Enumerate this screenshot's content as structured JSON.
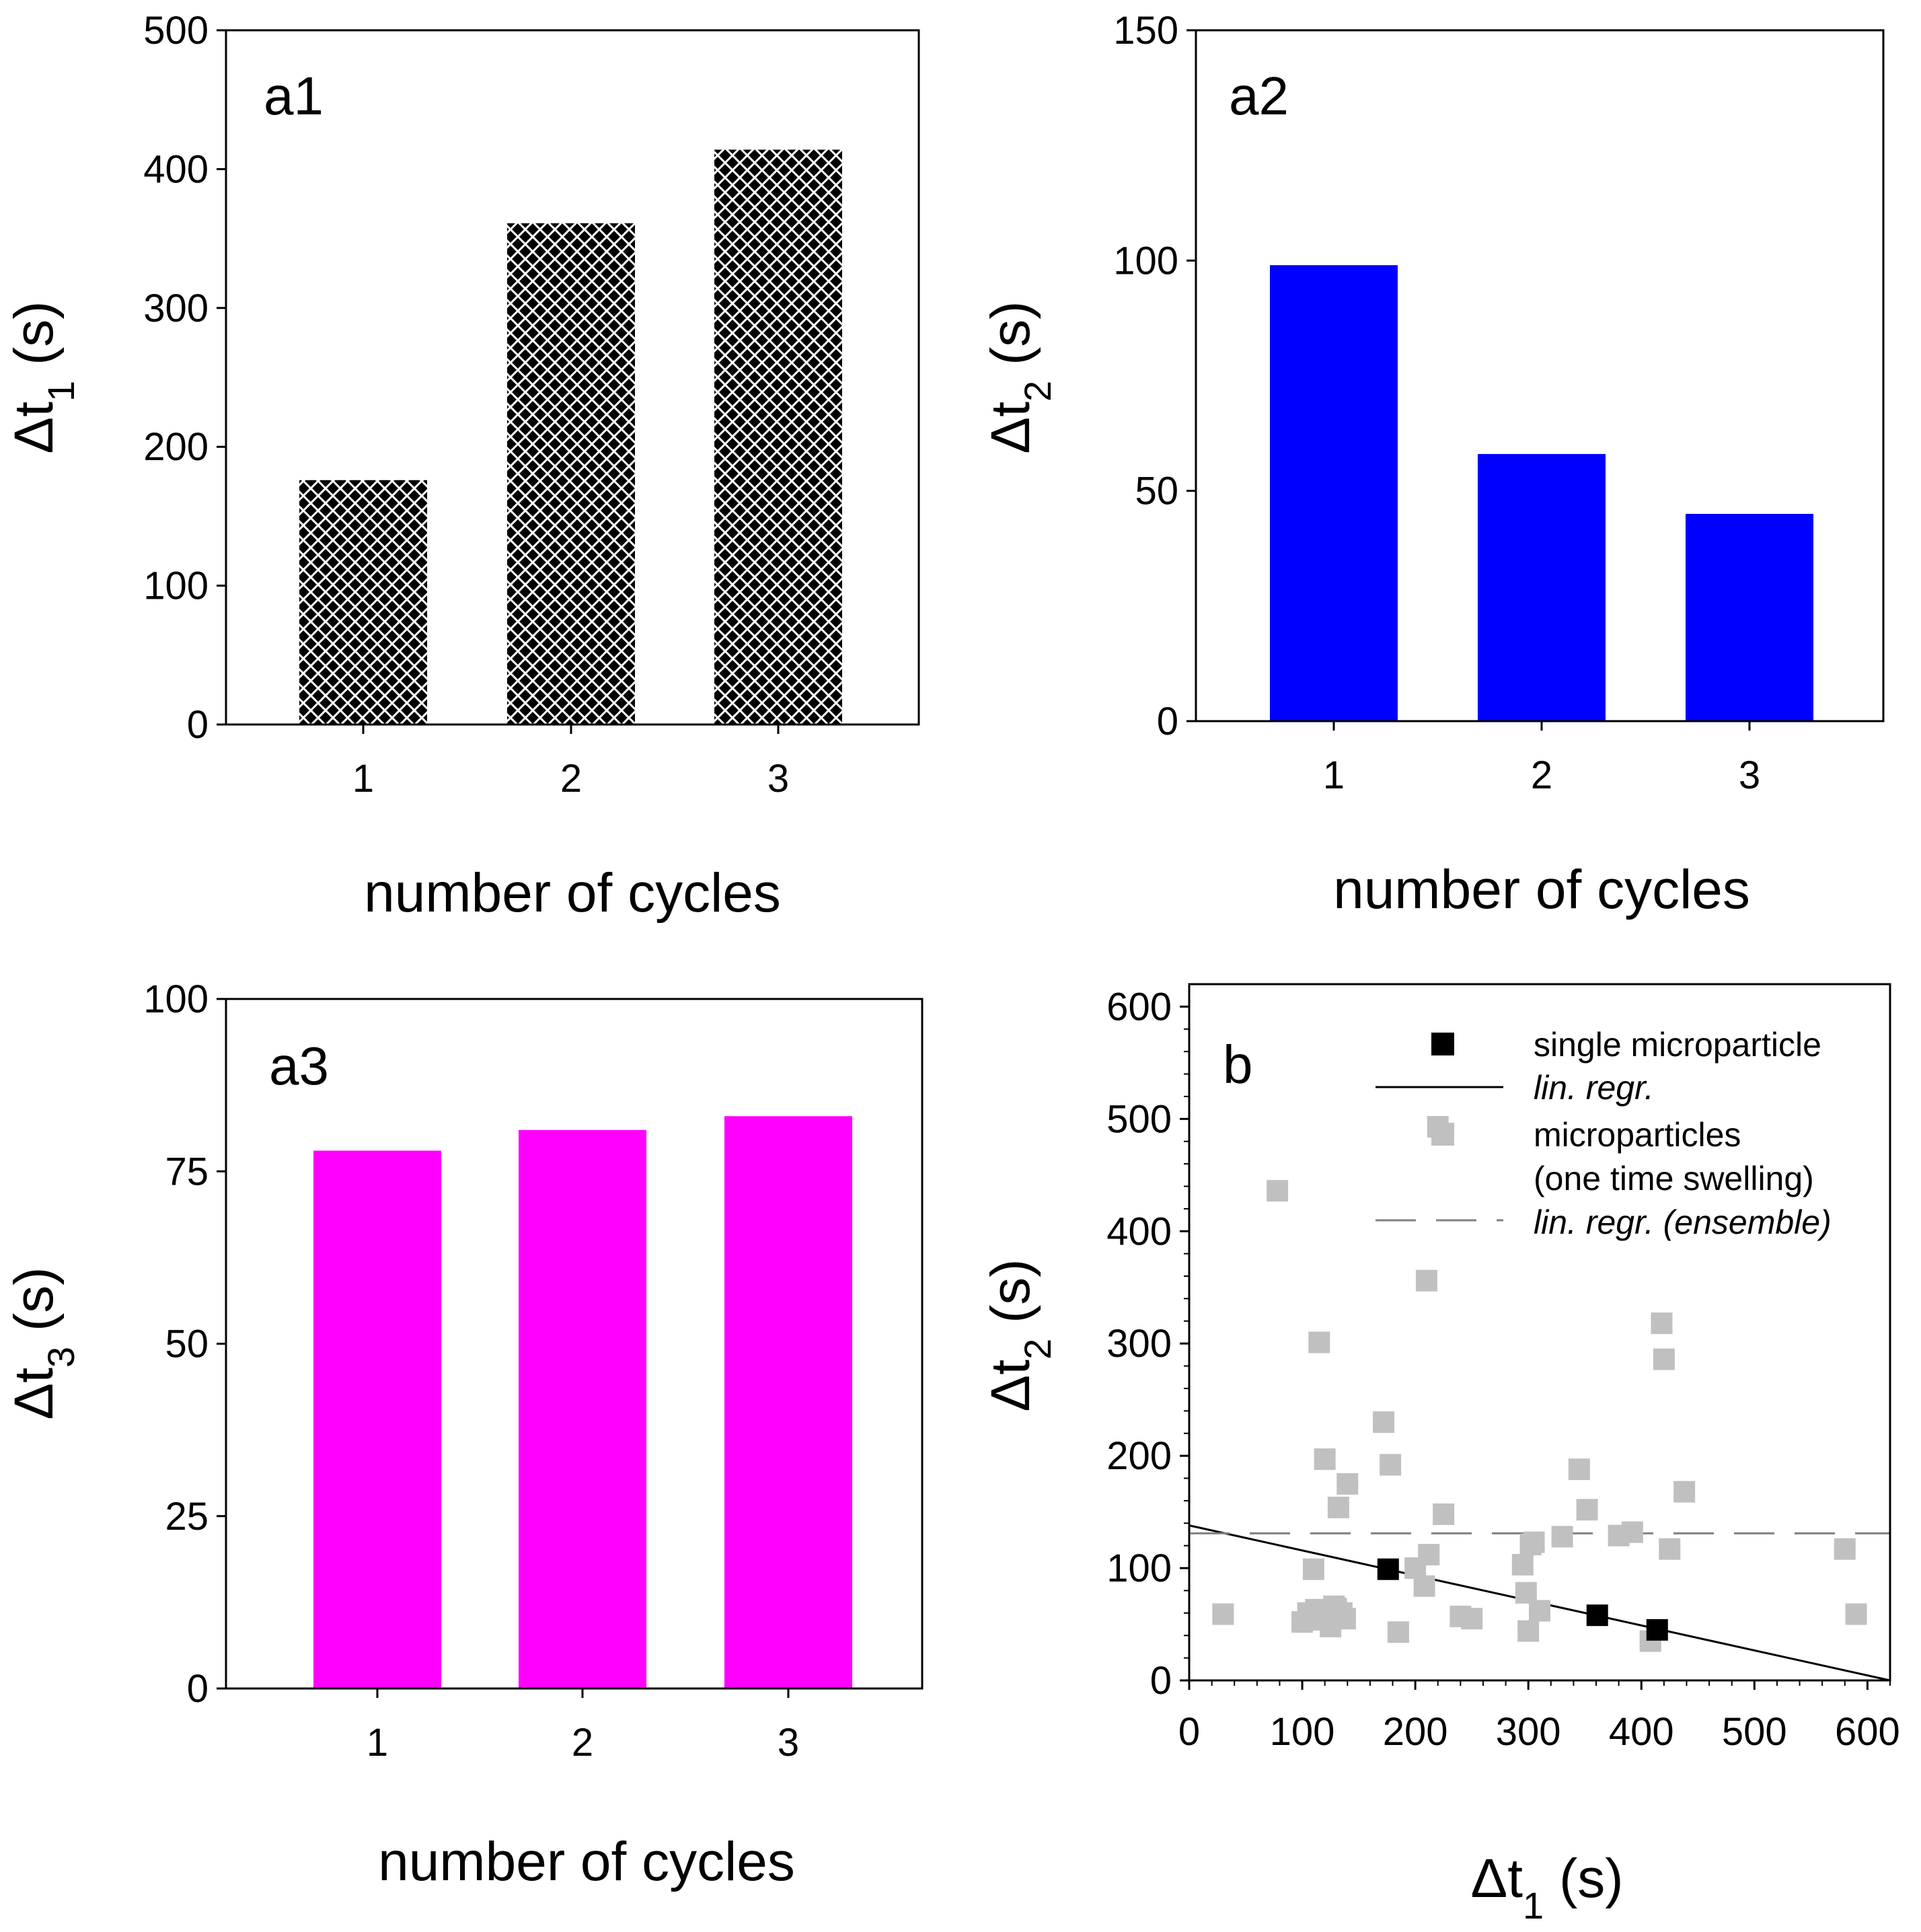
{
  "colors": {
    "a1_bar_fill": "#000000",
    "a1_hatch": "#ffffff",
    "a2_bar_fill": "#0000ff",
    "a3_bar_fill": "#ff00ff",
    "single_marker": "#000000",
    "ensemble_marker": "#c0c0c0",
    "regression_line": "#000000",
    "ensemble_line": "#808080"
  },
  "chart_data": [
    {
      "id": "a1",
      "type": "bar",
      "panel_label": "a1",
      "categories": [
        "1",
        "2",
        "3"
      ],
      "values": [
        176,
        361,
        414
      ],
      "xlabel": "number of cycles",
      "ylabel_main": "Δt",
      "ylabel_sub": "1",
      "ylabel_unit": " (s)",
      "ylim": [
        0,
        500
      ],
      "yticks": [
        "0",
        "100",
        "200",
        "300",
        "400",
        "500"
      ],
      "bar_style": "crosshatch",
      "grid": false
    },
    {
      "id": "a2",
      "type": "bar",
      "panel_label": "a2",
      "categories": [
        "1",
        "2",
        "3"
      ],
      "values": [
        99,
        58,
        45
      ],
      "xlabel": "number of cycles",
      "ylabel_main": "Δt",
      "ylabel_sub": "2",
      "ylabel_unit": " (s)",
      "ylim": [
        0,
        150
      ],
      "yticks": [
        "0",
        "50",
        "100",
        "150"
      ],
      "bar_style": "solid",
      "grid": false
    },
    {
      "id": "a3",
      "type": "bar",
      "panel_label": "a3",
      "categories": [
        "1",
        "2",
        "3"
      ],
      "values": [
        78,
        81,
        83
      ],
      "xlabel": "number of cycles",
      "ylabel_main": "Δt",
      "ylabel_sub": "3",
      "ylabel_unit": " (s)",
      "ylim": [
        0,
        100
      ],
      "yticks": [
        "0",
        "25",
        "50",
        "75",
        "100"
      ],
      "bar_style": "solid",
      "grid": false
    },
    {
      "id": "b",
      "type": "scatter",
      "panel_label": "b",
      "xlabel_main": "Δt",
      "xlabel_sub": "1",
      "xlabel_unit": " (s)",
      "ylabel_main": "Δt",
      "ylabel_sub": "2",
      "ylabel_unit": " (s)",
      "xlim": [
        0,
        620
      ],
      "ylim": [
        0,
        620
      ],
      "xticks": [
        "0",
        "100",
        "200",
        "300",
        "400",
        "500",
        "600"
      ],
      "yticks": [
        "0",
        "100",
        "200",
        "300",
        "400",
        "500",
        "600"
      ],
      "legend_position": "top-right",
      "grid": false,
      "series": [
        {
          "name": "single microparticle",
          "marker": "square",
          "x": [
            176,
            361,
            414
          ],
          "y": [
            99,
            58,
            45
          ]
        },
        {
          "name": "microparticles",
          "name_line2": "(one time swelling)",
          "marker": "square",
          "x": [
            30,
            78,
            100,
            105,
            110,
            112,
            115,
            118,
            120,
            122,
            125,
            128,
            130,
            132,
            135,
            138,
            140,
            172,
            178,
            185,
            200,
            208,
            210,
            212,
            220,
            225,
            240,
            250,
            295,
            298,
            300,
            302,
            305,
            310,
            330,
            345,
            352,
            380,
            392,
            408,
            418,
            420,
            425,
            438,
            580,
            590
          ],
          "y": [
            59,
            436,
            52,
            60,
            99,
            63,
            301,
            54,
            197,
            60,
            48,
            66,
            64,
            154,
            60,
            55,
            175,
            230,
            192,
            43,
            100,
            84,
            356,
            112,
            493,
            148,
            57,
            55,
            103,
            78,
            44,
            121,
            123,
            62,
            128,
            188,
            152,
            129,
            132,
            35,
            318,
            286,
            117,
            168,
            117,
            59
          ]
        }
      ],
      "lines": [
        {
          "name": "lin. regr.",
          "style": "solid",
          "x": [
            0,
            620
          ],
          "y": [
            138,
            0
          ]
        },
        {
          "name": "lin. regr. (ensemble)",
          "style": "dashed",
          "x": [
            0,
            620
          ],
          "y": [
            131,
            131
          ]
        }
      ]
    }
  ]
}
